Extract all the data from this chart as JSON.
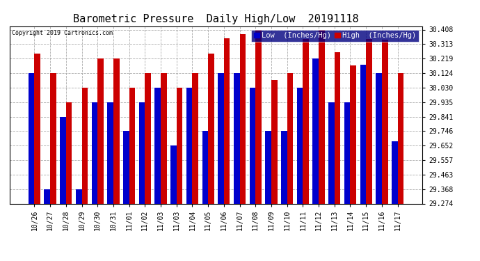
{
  "title": "Barometric Pressure  Daily High/Low  20191118",
  "copyright": "Copyright 2019 Cartronics.com",
  "categories": [
    "10/26",
    "10/27",
    "10/28",
    "10/29",
    "10/30",
    "10/31",
    "11/01",
    "11/02",
    "11/03",
    "11/03",
    "11/04",
    "11/05",
    "11/06",
    "11/07",
    "11/08",
    "11/09",
    "11/10",
    "11/11",
    "11/12",
    "11/13",
    "11/14",
    "11/15",
    "11/16",
    "11/17"
  ],
  "low_values": [
    30.124,
    29.368,
    29.841,
    29.368,
    29.935,
    29.935,
    29.746,
    29.935,
    30.03,
    29.652,
    30.03,
    29.746,
    30.124,
    30.124,
    30.03,
    29.746,
    29.746,
    30.03,
    30.219,
    29.935,
    29.935,
    30.178,
    30.124,
    29.68
  ],
  "high_values": [
    30.25,
    30.124,
    29.935,
    30.03,
    30.219,
    30.219,
    30.03,
    30.124,
    30.124,
    30.03,
    30.124,
    30.25,
    30.35,
    30.38,
    30.408,
    30.08,
    30.124,
    30.345,
    30.408,
    30.26,
    30.175,
    30.345,
    30.34,
    30.124
  ],
  "low_color": "#0000cc",
  "high_color": "#cc0000",
  "background_color": "#ffffff",
  "grid_color": "#aaaaaa",
  "ylim_min": 29.274,
  "ylim_max": 30.408,
  "yticks": [
    29.274,
    29.368,
    29.463,
    29.557,
    29.652,
    29.746,
    29.841,
    29.935,
    30.03,
    30.124,
    30.219,
    30.313,
    30.408
  ],
  "title_fontsize": 11,
  "tick_fontsize": 7,
  "legend_fontsize": 7.5,
  "bar_width": 0.38,
  "legend_bg": "#000080",
  "legend_text_color": "#ffffff",
  "border_color": "#000000"
}
